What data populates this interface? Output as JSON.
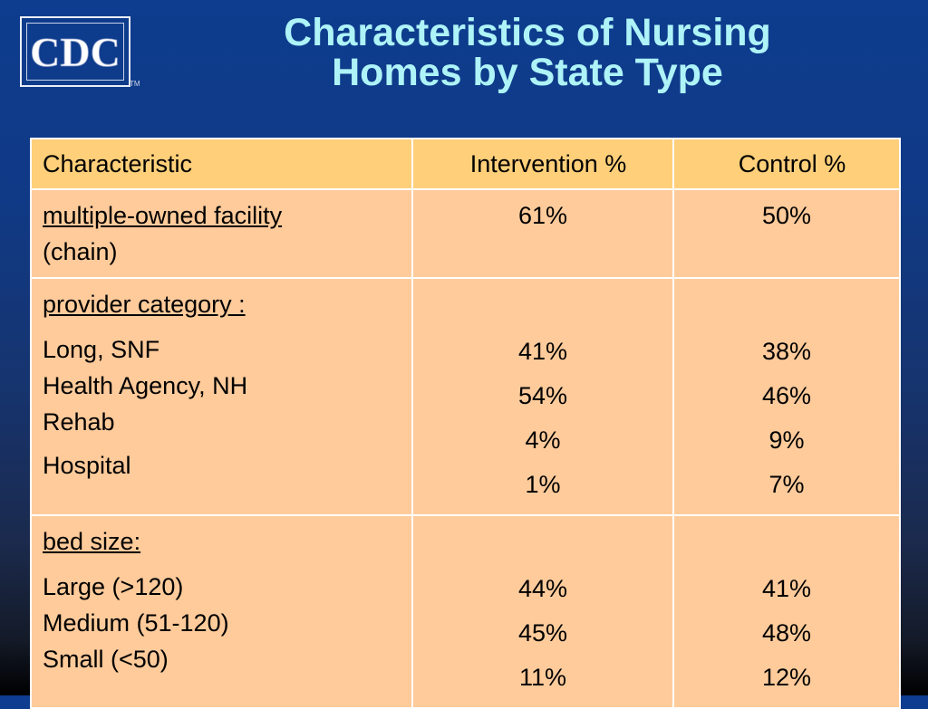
{
  "logo": {
    "text": "CDC",
    "tm": "TM"
  },
  "title": {
    "line1": "Characteristics of Nursing",
    "line2": "Homes by State Type"
  },
  "table": {
    "headers": [
      "Characteristic",
      "Intervention %",
      "Control %"
    ],
    "rows": [
      {
        "heading": "multiple-owned facility",
        "items": [
          "(chain)"
        ],
        "intervention": [
          "61%"
        ],
        "control": [
          "50%"
        ]
      },
      {
        "heading": "provider category :",
        "items": [
          "Long, SNF",
          "Health Agency, NH",
          "Rehab",
          "Hospital"
        ],
        "intervention": [
          "41%",
          "54%",
          "4%",
          "1%"
        ],
        "control": [
          "38%",
          "46%",
          "9%",
          "7%"
        ]
      },
      {
        "heading": "bed size:",
        "items": [
          "Large (>120)",
          "Medium (51-120)",
          "Small (<50)"
        ],
        "intervention": [
          "44%",
          "45%",
          "11%"
        ],
        "control": [
          "41%",
          "48%",
          "12%"
        ]
      }
    ]
  }
}
